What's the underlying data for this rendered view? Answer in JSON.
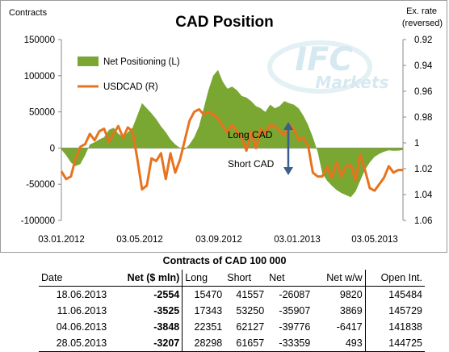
{
  "chart_data": {
    "type": "area",
    "title": "CAD Position",
    "left_axis": {
      "label": "Contracts",
      "ticks": [
        "150000",
        "100000",
        "50000",
        "0",
        "-50000",
        "-100000"
      ],
      "ylim": [
        -100000,
        150000
      ]
    },
    "right_axis": {
      "label_line1": "Ex. rate",
      "label_line2": "(reversed)",
      "ticks": [
        "0.92",
        "0.94",
        "0.96",
        "0.98",
        "1",
        "1.02",
        "1.04",
        "1.06"
      ],
      "ylim": [
        0.92,
        1.06
      ],
      "reversed": true
    },
    "x_ticks": [
      "03.01.2012",
      "03.05.2012",
      "03.09.2012",
      "03.01.2013",
      "03.05.2013"
    ],
    "legend": [
      {
        "name": "Net Positioning (L)",
        "color": "#7aa632",
        "kind": "area"
      },
      {
        "name": "USDCAD (R)",
        "color": "#e8731f",
        "kind": "line"
      }
    ],
    "annotations": {
      "long": "Long CAD",
      "short": "Short CAD"
    },
    "watermark_lines": [
      "IFC",
      "Markets"
    ],
    "date_range": [
      "2012-01-03",
      "2013-06-18"
    ],
    "series": [
      {
        "name": "Net Positioning (L)",
        "values": [
          -2000,
          -10000,
          -20000,
          -25000,
          -22000,
          -10000,
          5000,
          8000,
          12000,
          15000,
          25000,
          28000,
          20000,
          15000,
          22000,
          28000,
          45000,
          62000,
          55000,
          48000,
          40000,
          30000,
          22000,
          12000,
          5000,
          0,
          -2000,
          5000,
          15000,
          30000,
          55000,
          80000,
          100000,
          108000,
          92000,
          82000,
          85000,
          80000,
          72000,
          70000,
          65000,
          58000,
          55000,
          50000,
          60000,
          55000,
          58000,
          65000,
          62000,
          60000,
          55000,
          45000,
          32000,
          15000,
          -5000,
          -35000,
          -45000,
          -52000,
          -58000,
          -62000,
          -65000,
          -68000,
          -60000,
          -45000,
          -30000,
          -20000,
          -12000,
          -8000,
          -5000,
          -3207,
          -3848,
          -3525,
          -2554
        ]
      },
      {
        "name": "USDCAD (R)",
        "values": [
          1.022,
          1.028,
          1.026,
          1.012,
          1.003,
          1.001,
          0.993,
          0.998,
          0.991,
          0.989,
          0.999,
          0.993,
          0.987,
          0.996,
          0.988,
          0.991,
          1.012,
          1.036,
          1.033,
          1.012,
          1.014,
          1.008,
          1.028,
          1.008,
          1.023,
          1.013,
          0.998,
          0.983,
          0.976,
          0.974,
          0.978,
          0.976,
          0.978,
          0.981,
          0.987,
          0.992,
          0.986,
          0.991,
          0.996,
          1.006,
          0.991,
          1.004,
          0.989,
          0.993,
          0.986,
          0.987,
          0.991,
          0.994,
          0.986,
          0.989,
          0.998,
          0.996,
          1.002,
          1.023,
          1.026,
          1.026,
          1.018,
          1.027,
          1.015,
          1.026,
          1.018,
          1.017,
          1.029,
          1.009,
          1.021,
          1.035,
          1.037,
          1.032,
          1.027,
          1.018,
          1.023,
          1.021,
          1.021
        ]
      }
    ]
  },
  "table": {
    "title": "Contracts of CAD 100 000",
    "headers": [
      "Date",
      "Net ($ mln)",
      "Long",
      "Short",
      "Net",
      "Net w/w",
      "Open Int."
    ],
    "rows": [
      [
        "18.06.2013",
        "-2554",
        "15470",
        "41557",
        "-26087",
        "9820",
        "145484"
      ],
      [
        "11.06.2013",
        "-3525",
        "17343",
        "53250",
        "-35907",
        "3869",
        "145729"
      ],
      [
        "04.06.2013",
        "-3848",
        "22351",
        "62127",
        "-39776",
        "-6417",
        "141838"
      ],
      [
        "28.05.2013",
        "-3207",
        "28298",
        "61657",
        "-33359",
        "493",
        "144725"
      ]
    ]
  }
}
